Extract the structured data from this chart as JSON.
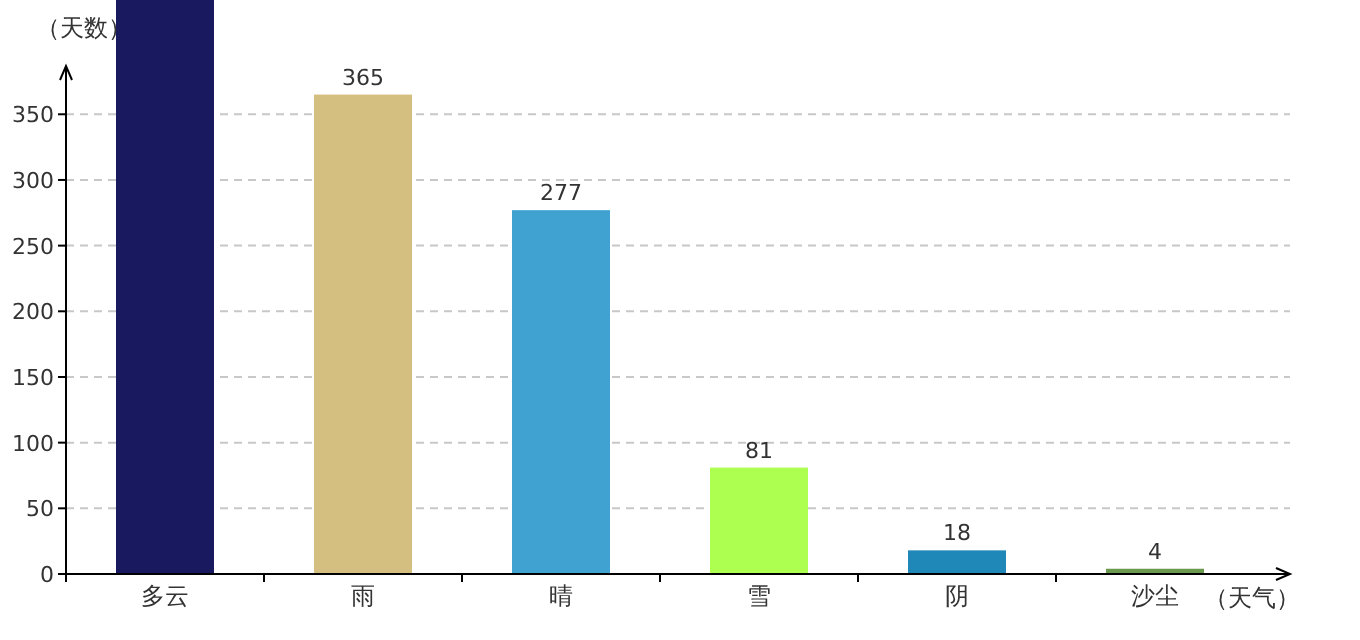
{
  "chart_data": {
    "type": "bar",
    "xlabel": "（天气）",
    "ylabel": "（天数）",
    "categories": [
      "多云",
      "雨",
      "晴",
      "雪",
      "阴",
      "沙尘"
    ],
    "values": [
      437,
      365,
      277,
      81,
      18,
      4
    ],
    "value_labels": [
      null,
      "365",
      "277",
      "81",
      "18",
      "4"
    ],
    "colors": [
      "#191960",
      "#d4bf80",
      "#3fa2d0",
      "#adff50",
      "#2088b8",
      "#6b9a4f"
    ],
    "ylim": [
      0,
      437
    ],
    "yticks": [
      0,
      50,
      100,
      150,
      200,
      250,
      300,
      350
    ],
    "grid": "y"
  }
}
